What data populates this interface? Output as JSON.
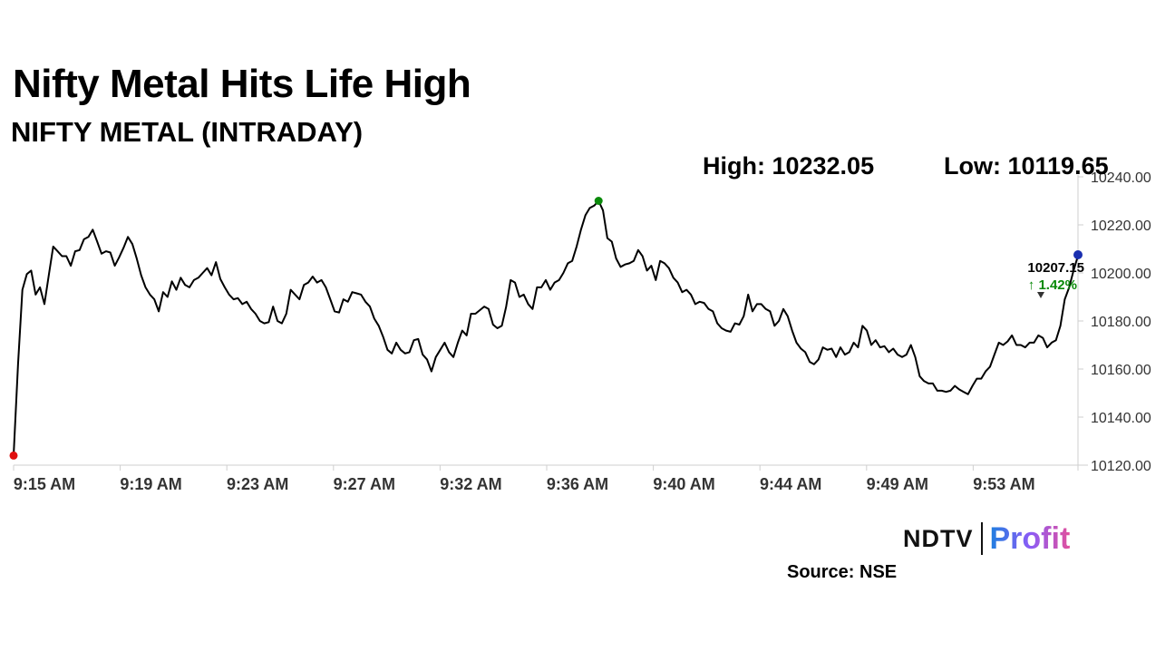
{
  "header": {
    "title": "Nifty Metal Hits Life High",
    "subtitle": "NIFTY METAL (INTRADAY)",
    "high_label": "High: 10232.05",
    "low_label": "Low: 10119.65"
  },
  "footer": {
    "logo_left": "NDTV",
    "logo_right": "Profit",
    "source": "Source: NSE"
  },
  "colors": {
    "line": "#000000",
    "low_marker": "#e01010",
    "high_marker": "#0a8a0a",
    "last_marker": "#1a2fb0",
    "change_up": "#0a8a0a"
  },
  "chart_data": {
    "type": "line",
    "title": "NIFTY METAL (INTRADAY)",
    "xlabel": "",
    "ylabel": "",
    "ylim": [
      10120,
      10240
    ],
    "yticks": [
      "10240.00",
      "10220.00",
      "10200.00",
      "10180.00",
      "10160.00",
      "10140.00",
      "10120.00"
    ],
    "yvalues": [
      10240,
      10220,
      10200,
      10180,
      10160,
      10140,
      10120
    ],
    "xticks": [
      "9:15 AM",
      "9:19 AM",
      "9:23 AM",
      "9:27 AM",
      "9:32 AM",
      "9:36 AM",
      "9:40 AM",
      "9:44 AM",
      "9:49 AM",
      "9:53 AM"
    ],
    "grid": false,
    "high": 10232.05,
    "low": 10119.65,
    "last_value_label": "10207.15",
    "change_label": "1.42%",
    "series": [
      {
        "values": [
          10124.0,
          10162.0,
          10193.0,
          10199.5,
          10201.0,
          10191.0,
          10194.0,
          10187.0,
          10199.0,
          10211.0,
          10209.0,
          10207.0,
          10207.0,
          10203.0,
          10209.0,
          10209.5,
          10214.0,
          10215.0,
          10218.0,
          10213.0,
          10208.0,
          10209.0,
          10208.5,
          10203.0,
          10206.5,
          10210.5,
          10215.0,
          10212.0,
          10206.0,
          10199.0,
          10194.0,
          10191.0,
          10189.0,
          10184.0,
          10192.0,
          10190.0,
          10196.5,
          10193.0,
          10198.0,
          10195.0,
          10194.0,
          10197.0,
          10198.0,
          10200.0,
          10202.0,
          10199.0,
          10204.5,
          10197.5,
          10194.0,
          10191.0,
          10189.0,
          10189.5,
          10187.0,
          10188.0,
          10185.0,
          10183.0,
          10180.0,
          10179.0,
          10179.5,
          10186.0,
          10180.0,
          10179.0,
          10183.0,
          10193.0,
          10191.0,
          10189.0,
          10195.0,
          10196.0,
          10198.5,
          10196.0,
          10197.0,
          10194.0,
          10189.0,
          10184.0,
          10183.5,
          10189.0,
          10188.0,
          10192.0,
          10191.5,
          10191.0,
          10188.0,
          10186.0,
          10181.0,
          10178.0,
          10173.5,
          10168.0,
          10166.5,
          10171.0,
          10168.0,
          10166.5,
          10167.0,
          10172.0,
          10172.5,
          10166.0,
          10164.0,
          10159.0,
          10165.0,
          10168.0,
          10171.0,
          10167.0,
          10165.0,
          10171.0,
          10176.0,
          10174.0,
          10183.0,
          10183.0,
          10184.5,
          10186.0,
          10185.0,
          10178.5,
          10177.0,
          10178.0,
          10186.0,
          10197.0,
          10196.0,
          10190.0,
          10191.0,
          10187.0,
          10185.0,
          10194.0,
          10194.0,
          10197.0,
          10193.0,
          10196.0,
          10197.0,
          10200.0,
          10204.0,
          10205.0,
          10211.0,
          10218.0,
          10224.0,
          10227.0,
          10228.0,
          10230.0,
          10226.0,
          10214.5,
          10213.0,
          10206.0,
          10202.5,
          10203.5,
          10204.0,
          10205.0,
          10209.5,
          10207.0,
          10201.0,
          10203.0,
          10197.0,
          10205.0,
          10204.0,
          10202.0,
          10198.0,
          10196.0,
          10192.0,
          10193.0,
          10191.0,
          10187.0,
          10188.0,
          10187.5,
          10185.0,
          10184.0,
          10179.0,
          10177.0,
          10176.0,
          10175.5,
          10179.0,
          10178.5,
          10182.0,
          10191.0,
          10184.0,
          10187.0,
          10187.0,
          10185.0,
          10184.0,
          10178.0,
          10180.0,
          10185.0,
          10182.0,
          10176.0,
          10171.0,
          10168.5,
          10167.0,
          10163.0,
          10162.0,
          10164.0,
          10169.0,
          10168.0,
          10168.5,
          10165.0,
          10169.0,
          10166.0,
          10167.0,
          10171.0,
          10169.0,
          10178.0,
          10176.0,
          10170.0,
          10172.0,
          10169.0,
          10169.5,
          10167.0,
          10168.5,
          10166.0,
          10165.0,
          10166.0,
          10170.0,
          10165.0,
          10157.0,
          10155.0,
          10154.0,
          10154.0,
          10151.0,
          10151.0,
          10150.5,
          10151.0,
          10153.0,
          10151.5,
          10150.5,
          10149.5,
          10153.0,
          10156.0,
          10156.0,
          10159.0,
          10161.0,
          10166.0,
          10171.0,
          10170.0,
          10171.5,
          10174.0,
          10170.0,
          10170.0,
          10169.0,
          10171.0,
          10171.0,
          10174.0,
          10173.0,
          10169.0,
          10171.0,
          10172.0,
          10178.0,
          10189.0,
          10194.0,
          10201.0,
          10207.15
        ]
      }
    ]
  }
}
